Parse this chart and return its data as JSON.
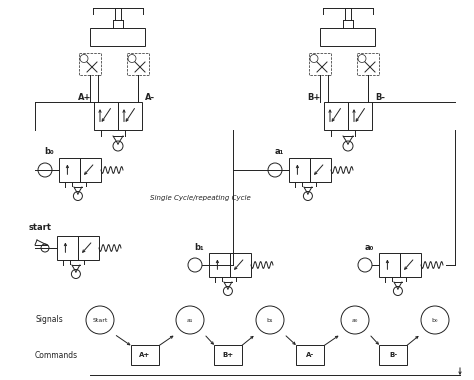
{
  "bg_color": "#ffffff",
  "lc": "#222222",
  "lw": 0.7,
  "signals": [
    "Start",
    "a₁",
    "b₁",
    "a₀",
    "b₀"
  ],
  "commands": [
    "A+",
    "B+",
    "A-",
    "B-"
  ],
  "text_single_cycle": "Single Cycle/repeating Cycle"
}
